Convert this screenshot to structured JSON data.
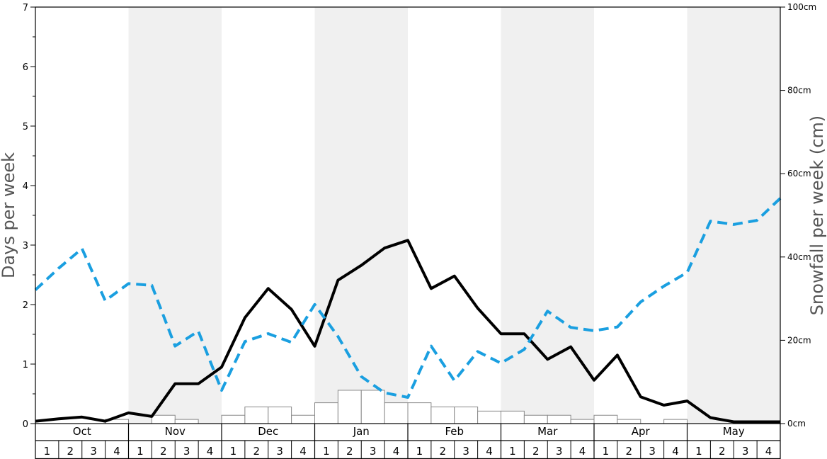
{
  "chart_data": {
    "type": "bar+line",
    "ylabel_left": "Days per week",
    "ylabel_right": "Snowfall per week (cm)",
    "y_left_ticks": [
      "0",
      "1",
      "2",
      "3",
      "4",
      "5",
      "6",
      "7"
    ],
    "y_right_ticks": [
      "0cm",
      "20cm",
      "40cm",
      "60cm",
      "80cm",
      "100cm"
    ],
    "ylim_left": [
      0,
      7
    ],
    "ylim_right": [
      0,
      100
    ],
    "months": [
      "Oct",
      "Nov",
      "Dec",
      "Jan",
      "Feb",
      "Mar",
      "Apr",
      "May"
    ],
    "weeks": [
      "1",
      "2",
      "3",
      "4"
    ],
    "colors": {
      "days_line": "#000000",
      "snow_line": "#1a9fe0",
      "bars_stroke": "#888888",
      "shade": "#f0f0f0"
    },
    "series": [
      {
        "kind": "bar",
        "axis": "right",
        "values": [
          0,
          0,
          0,
          1,
          0,
          2,
          1,
          0,
          2,
          4,
          4,
          2,
          5,
          8,
          8,
          5,
          5,
          4,
          4,
          3,
          3,
          2,
          2,
          1,
          2,
          1,
          0,
          1,
          0,
          0,
          0,
          0
        ]
      },
      {
        "kind": "line",
        "axis": "left",
        "style": "solid",
        "values": [
          0.04,
          0.08,
          0.11,
          0.04,
          0.18,
          0.12,
          0.67,
          0.67,
          0.95,
          1.78,
          2.27,
          1.92,
          1.3,
          2.41,
          2.66,
          2.95,
          3.08,
          2.27,
          2.48,
          1.94,
          1.51,
          1.51,
          1.08,
          1.29,
          0.73,
          1.15,
          0.45,
          0.31,
          0.38,
          0.1,
          0.03,
          0.03,
          0.03
        ]
      },
      {
        "kind": "line",
        "axis": "right",
        "style": "dashed",
        "values": [
          32.1,
          37.3,
          42.0,
          29.5,
          33.6,
          33.2,
          18.6,
          22.2,
          8.0,
          19.7,
          21.6,
          19.5,
          28.6,
          20.9,
          11.3,
          7.4,
          6.3,
          18.6,
          10.3,
          17.3,
          14.5,
          17.8,
          27.0,
          23.1,
          22.3,
          23.2,
          29.2,
          33.0,
          36.3,
          48.6,
          47.8,
          48.8,
          54.1
        ]
      }
    ]
  }
}
